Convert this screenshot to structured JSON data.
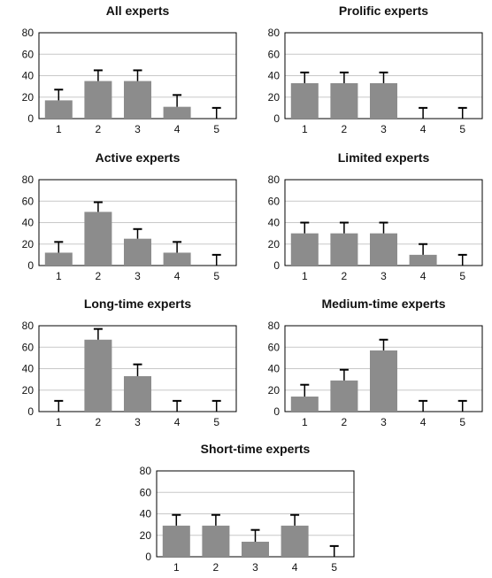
{
  "figure": {
    "colors": {
      "bar": "#8c8c8c",
      "error_bar": "#000000",
      "grid": "#c8c8c8",
      "axis": "#000000",
      "frame": "#000000"
    },
    "panels": [
      {
        "title": "All experts",
        "chart_index": 0
      },
      {
        "title": "Prolific experts",
        "chart_index": 1
      },
      {
        "title": "Active experts",
        "chart_index": 2
      },
      {
        "title": "Limited experts",
        "chart_index": 3
      },
      {
        "title": "Long-time experts",
        "chart_index": 4
      },
      {
        "title": "Medium-time experts",
        "chart_index": 5
      },
      {
        "title": "Short-time experts",
        "chart_index": 6
      }
    ]
  },
  "chart_data": [
    {
      "type": "bar",
      "title": "All experts",
      "categories": [
        "1",
        "2",
        "3",
        "4",
        "5"
      ],
      "values": [
        17,
        35,
        35,
        11,
        0
      ],
      "error_upper": [
        27,
        45,
        45,
        22,
        10
      ],
      "ylim": [
        0,
        80
      ],
      "yticks": [
        0,
        20,
        40,
        60,
        80
      ],
      "grid": true,
      "xlabel": "",
      "ylabel": ""
    },
    {
      "type": "bar",
      "title": "Prolific experts",
      "categories": [
        "1",
        "2",
        "3",
        "4",
        "5"
      ],
      "values": [
        33,
        33,
        33,
        0,
        0
      ],
      "error_upper": [
        43,
        43,
        43,
        10,
        10
      ],
      "ylim": [
        0,
        80
      ],
      "yticks": [
        0,
        20,
        40,
        60,
        80
      ],
      "grid": true,
      "xlabel": "",
      "ylabel": ""
    },
    {
      "type": "bar",
      "title": "Active experts",
      "categories": [
        "1",
        "2",
        "3",
        "4",
        "5"
      ],
      "values": [
        12,
        50,
        25,
        12,
        0
      ],
      "error_upper": [
        22,
        59,
        34,
        22,
        10
      ],
      "ylim": [
        0,
        80
      ],
      "yticks": [
        0,
        20,
        40,
        60,
        80
      ],
      "grid": true,
      "xlabel": "",
      "ylabel": ""
    },
    {
      "type": "bar",
      "title": "Limited experts",
      "categories": [
        "1",
        "2",
        "3",
        "4",
        "5"
      ],
      "values": [
        30,
        30,
        30,
        10,
        0
      ],
      "error_upper": [
        40,
        40,
        40,
        20,
        10
      ],
      "ylim": [
        0,
        80
      ],
      "yticks": [
        0,
        20,
        40,
        60,
        80
      ],
      "grid": true,
      "xlabel": "",
      "ylabel": ""
    },
    {
      "type": "bar",
      "title": "Long-time experts",
      "categories": [
        "1",
        "2",
        "3",
        "4",
        "5"
      ],
      "values": [
        0,
        67,
        33,
        0,
        0
      ],
      "error_upper": [
        10,
        77,
        44,
        10,
        10
      ],
      "ylim": [
        0,
        80
      ],
      "yticks": [
        0,
        20,
        40,
        60,
        80
      ],
      "grid": true,
      "xlabel": "",
      "ylabel": ""
    },
    {
      "type": "bar",
      "title": "Medium-time experts",
      "categories": [
        "1",
        "2",
        "3",
        "4",
        "5"
      ],
      "values": [
        14,
        29,
        57,
        0,
        0
      ],
      "error_upper": [
        25,
        39,
        67,
        10,
        10
      ],
      "ylim": [
        0,
        80
      ],
      "yticks": [
        0,
        20,
        40,
        60,
        80
      ],
      "grid": true,
      "xlabel": "",
      "ylabel": ""
    },
    {
      "type": "bar",
      "title": "Short-time experts",
      "categories": [
        "1",
        "2",
        "3",
        "4",
        "5"
      ],
      "values": [
        29,
        29,
        14,
        29,
        0
      ],
      "error_upper": [
        39,
        39,
        25,
        39,
        10
      ],
      "ylim": [
        0,
        80
      ],
      "yticks": [
        0,
        20,
        40,
        60,
        80
      ],
      "grid": true,
      "xlabel": "",
      "ylabel": ""
    }
  ]
}
